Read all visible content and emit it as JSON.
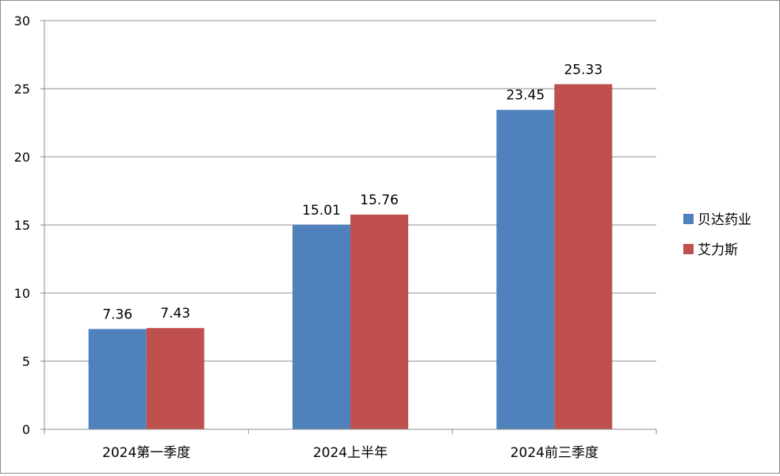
{
  "chart_data": {
    "type": "bar",
    "categories": [
      "2024第一季度",
      "2024上半年",
      "2024前三季度"
    ],
    "series": [
      {
        "name": "贝达药业",
        "values": [
          7.36,
          15.01,
          23.45
        ],
        "labels": [
          "7.36",
          "15.01",
          "23.45"
        ],
        "color": "#4F81BD"
      },
      {
        "name": "艾力斯",
        "values": [
          7.43,
          15.76,
          25.33
        ],
        "labels": [
          "7.43",
          "15.76",
          "25.33"
        ],
        "color": "#C0504D"
      }
    ],
    "ylim": [
      0,
      30
    ],
    "yticks": [
      0,
      5,
      10,
      15,
      20,
      25,
      30
    ],
    "grid": true,
    "legend_position": "right"
  }
}
